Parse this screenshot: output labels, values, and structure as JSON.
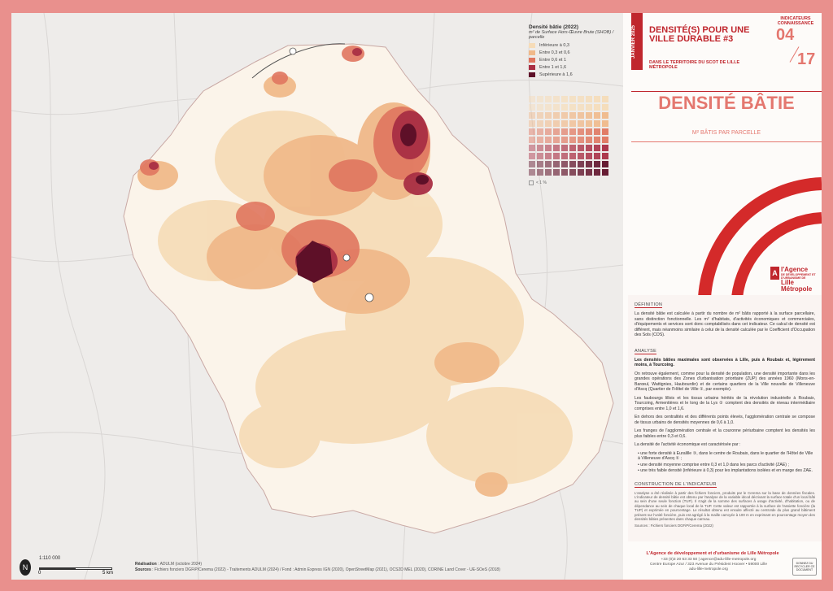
{
  "legend": {
    "title": "Densité bâtie (2022)",
    "subtitle": "m² de Surface Hors-Œuvre Brute (SHOB) / parcelle",
    "items": [
      {
        "label": "Inférieure à 0,3",
        "color": "#f6dcb8"
      },
      {
        "label": "Entre 0,3 et 0,6",
        "color": "#f0b98a"
      },
      {
        "label": "Entre 0,6 et 1",
        "color": "#e0765f"
      },
      {
        "label": "Entre 1 et 1,6",
        "color": "#a92f44"
      },
      {
        "label": "Supérieure à 1,6",
        "color": "#5e1028"
      }
    ],
    "matrix_note": "< 1 %"
  },
  "scale": {
    "label": "1:110 000",
    "start": "0",
    "end": "5 km"
  },
  "north": "N",
  "credits": {
    "realisation_label": "Réalisation",
    "realisation": ": ADULM (octobre 2024)",
    "sources_label": "Sources",
    "sources": ": Fichiers fonciers DGFiP/Cerema (2022) - Traitements ADULM (2024) / Fond : Admin Express IGN (2020), OpenStreetMap (2021), OCS2D MEL (2020), CORINE Land Cover - UE-SOeS (2018)"
  },
  "header": {
    "date_tag": "JANVIER 2025",
    "series_title": "DENSITÉ(S) POUR UNE VILLE DURABLE #3",
    "series_sub": "DANS LE TERRITOIRE DU SCOT DE LILLE MÉTROPOLE",
    "indicator_label": "INDICATEURS CONNAISSANCE",
    "indicator_num": "04",
    "indicator_total": "17"
  },
  "title": {
    "main": "DENSITÉ BÂTIE",
    "sub": "M² BÂTIS PAR PARCELLE"
  },
  "agency": {
    "name": "l'Agence",
    "tagline": "DE DÉVELOPPEMENT ET D'URBANISME DE",
    "city": "Lille Métropole"
  },
  "definition": {
    "heading": "DÉFINITION",
    "text": "La densité bâtie est calculée à partir du nombre de m² bâtis rapporté à la surface parcellaire, sans distinction fonctionnelle. Les m² d'habitats, d'activités économiques et commerciales, d'équipements et services sont donc comptabilisés dans cet indicateur. Ce calcul de densité est différent, mais néanmoins similaire à celui de la densité calculée par le Coefficient d'Occupation des Sols (COS)."
  },
  "analysis": {
    "heading": "ANALYSE",
    "p1": "Les densités bâties maximales sont observées à Lille, puis à Roubaix et, légèrement moins, à Tourcoing.",
    "p2": "On retrouve également, comme pour la densité de population, une densité importante dans les grandes opérations des Zones d'urbanisation prioritaire (ZUP) des années 1960 (Mons-en-Barœul, Wattignies, Haubourdin) et de certains quartiers de la Ville nouvelle de Villeneuve d'Ascq (Quartier de l'Hôtel de Ville ①, par exemple).",
    "p3": "Les faubourgs lillois et les tissus urbains hérités de la révolution industrielle à Roubaix, Tourcoing, Armentières et le long de la Lys ② comptent des densités de niveau intermédiaire comprises entre 1,0 et 1,6.",
    "p4": "En dehors des centralités et des différents points élevés, l'agglomération centrale se compose de tissus urbains de densités moyennes de 0,6 à 1,0.",
    "p5": "Les franges de l'agglomération centrale et la couronne périurbaine comptent les densités les plus faibles entre 0,3 et 0,6.",
    "p6": "La densité de l'activité économique est caractérisée par :",
    "b1": "• une forte densité à Euralille ③, dans le centre de Roubaix, dans le quartier de l'Hôtel de Ville à Villeneuve d'Ascq ① ;",
    "b2": "• une densité moyenne comprise entre 0,3 et 1,0 dans les parcs d'activité (ZAE) ;",
    "b3": "• une très faible densité (inférieure à 0,3) pour les implantations isolées et en marge des ZAE."
  },
  "construction": {
    "heading": "CONSTRUCTION DE L'INDICATEUR",
    "text": "L'analyse a été réalisée à partir des fichiers fonciers, produits par le Cerema sur la base de données fiscales. L'indicateur de densité bâtie est obtenu par l'analyse de la variable idcod décrivant la surface totale d'un local bâti au sein d'une seule fonction (TUP). Il s'agit de la somme des surfaces à usage d'activité, d'habitation, ou de dépendance au sein de chaque local de la TUP. Cette valeur est rapportée à la surface de l'assiette foncière (la TUP) et exprimée en pourcentage. Le résultat obtenu est ensuite affecté au centroïde du plus grand bâtiment présent sur l'unité foncière, puis est agrégé à la maille carroyée à 100 m en exprimant en pourcentage moyen des densités bâties présentes dans chaque carreau.",
    "sources": "Sources : Fichiers fonciers DGFiP/Cerema (2022)"
  },
  "footer": {
    "agency": "L'Agence de développement et d'urbanisme de Lille Métropole",
    "line1": "+33 (0)3 20 63 33 50 | agence@adu-lille-metropole.org",
    "line2": "Centre Europe Azur / 323 Avenue du Président Hoover • 59000 Lille",
    "line3": "adu-lille-metropole.org",
    "badge": "DONNEZ DU RECYCLER CE DOCUMENT"
  }
}
